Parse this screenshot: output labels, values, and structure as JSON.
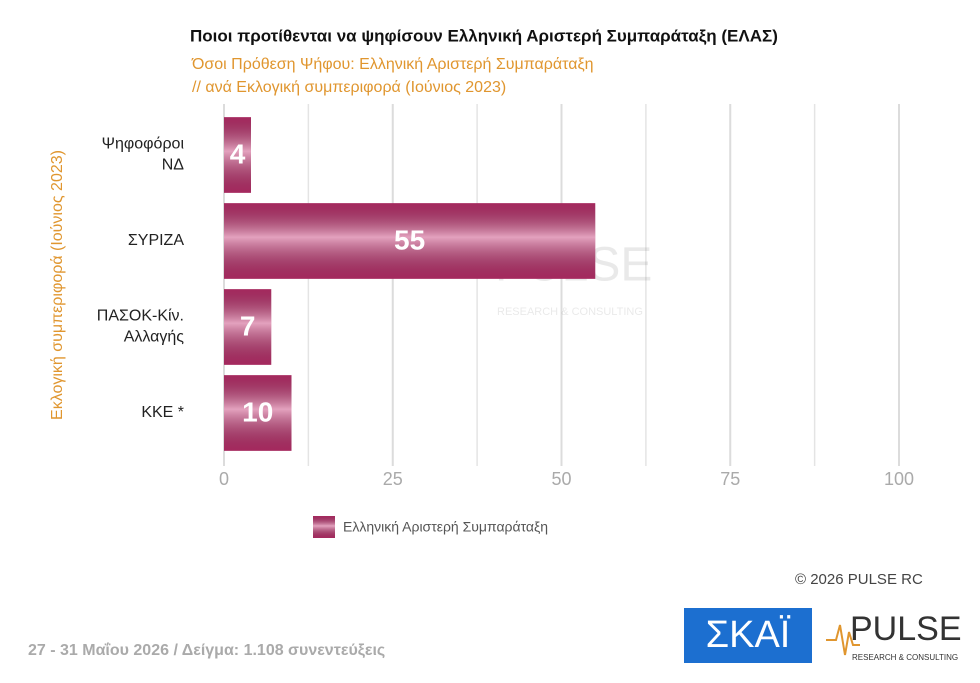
{
  "chart_data": {
    "type": "bar",
    "orientation": "horizontal",
    "title": "Ποιοι προτίθενται να ψηφίσουν Ελληνική Αριστερή Συμπαράταξη (ΕΛΑΣ)",
    "subtitle": [
      "Όσοι Πρόθεση Ψήφου: Ελληνική Αριστερή Συμπαράταξη",
      "// ανά Εκλογική  συμπεριφορά (Ιούνιος 2023)"
    ],
    "y_label": "Εκλογική  συμπεριφορά (Ιούνιος 2023)",
    "categories": [
      "Ψηφοφόροι\nΝΔ",
      "ΣΥΡΙΖΑ",
      "ΠΑΣΟΚ-Κίν.\nΑλλαγής",
      "ΚΚΕ *"
    ],
    "series": [
      {
        "name": "Ελληνική Αριστερή Συμπαράταξη",
        "color": "#c2306f",
        "values": [
          4,
          55,
          7,
          10
        ]
      }
    ],
    "xlim": [
      0,
      100
    ],
    "xticks": [
      0,
      25,
      50,
      75,
      100
    ],
    "minor_xticks": [
      12.5,
      37.5,
      62.5,
      87.5
    ],
    "grid": true,
    "legend": "bottom"
  },
  "copyright": "© 2026 PULSE RC",
  "footer": "27 - 31 Μαΐου 2026  /  Δείγμα:  1.108 συνεντεύξεις",
  "logos": {
    "skai": "ΣΚΑΪ",
    "pulse": "PULSE",
    "pulse_sub": "RESEARCH & CONSULTING"
  }
}
